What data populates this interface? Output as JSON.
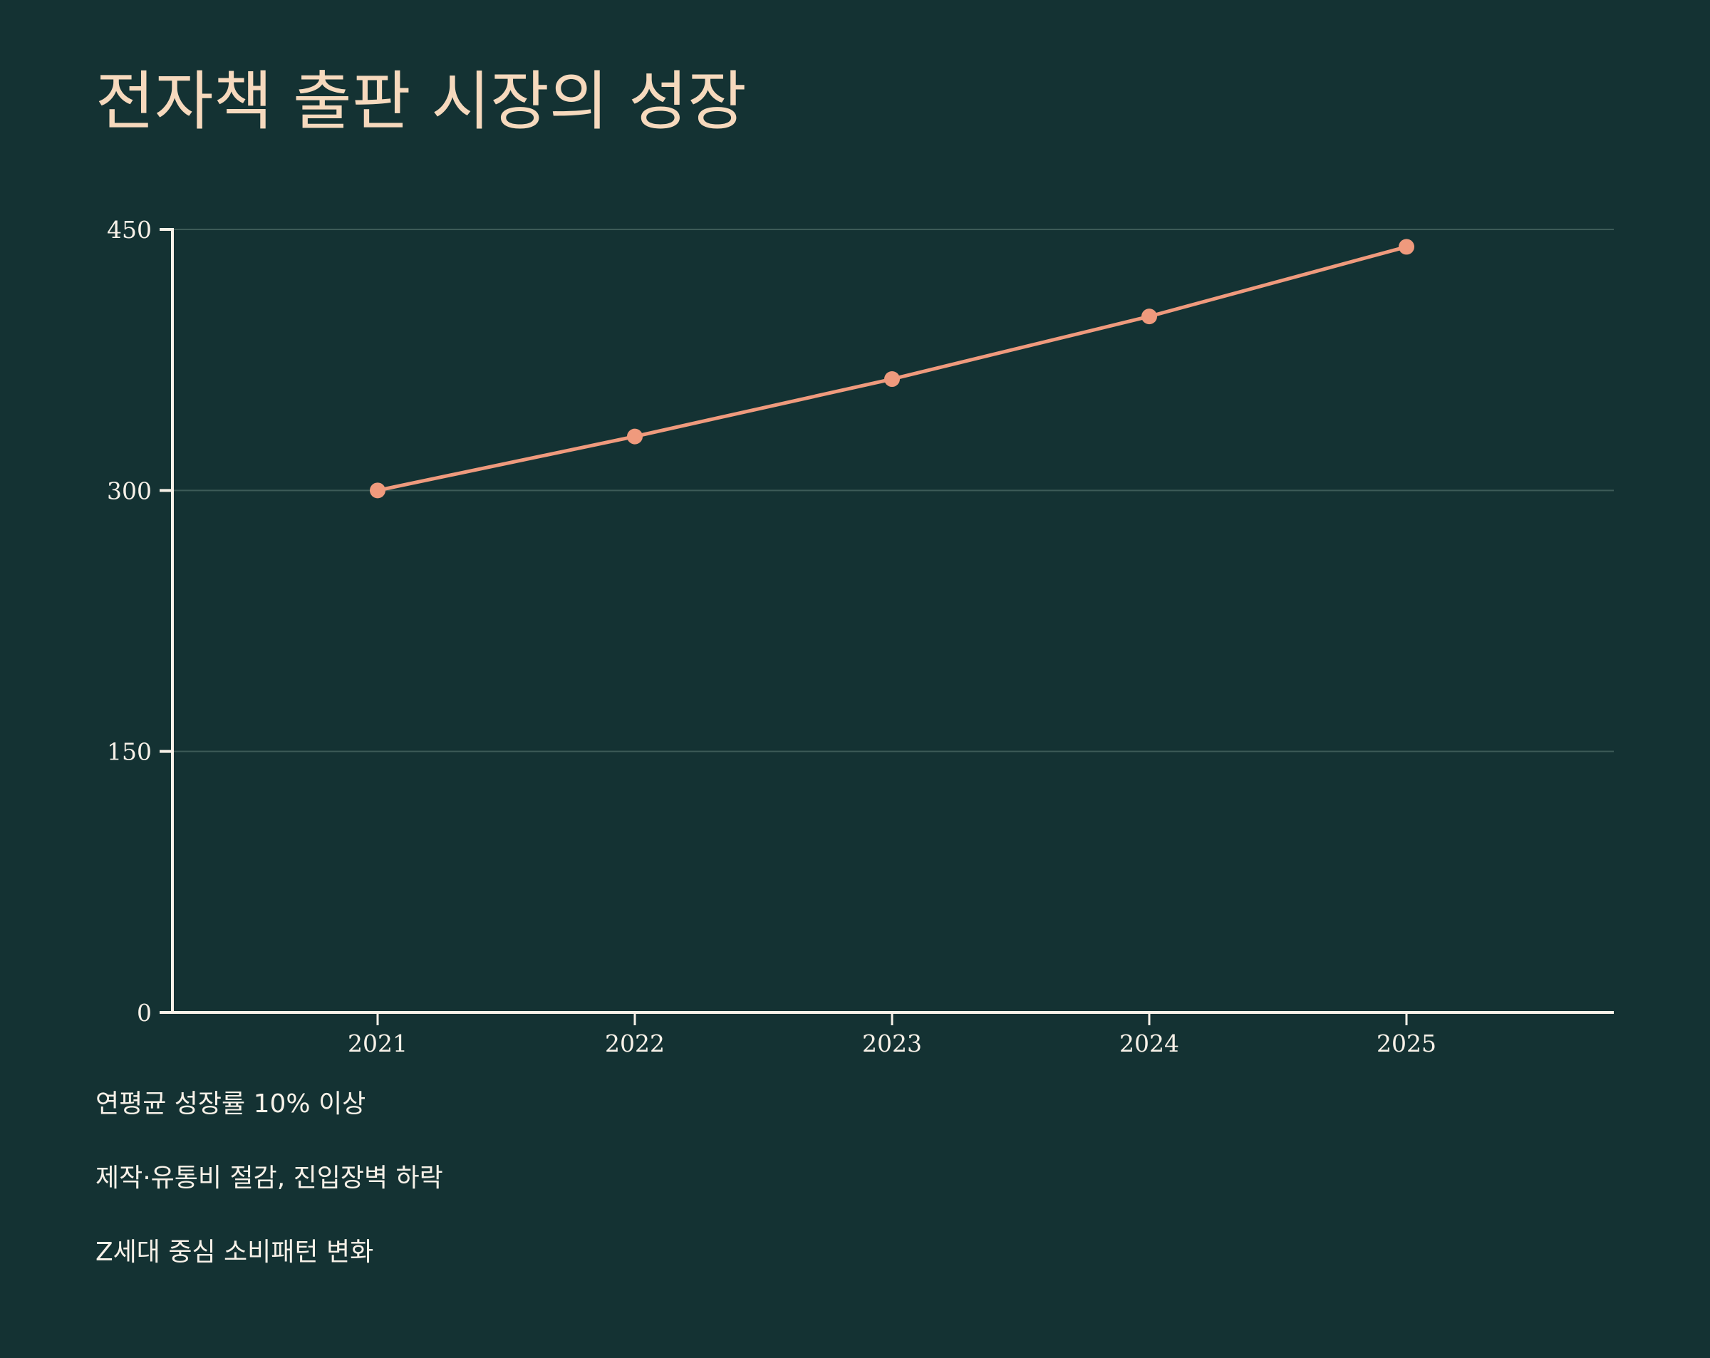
{
  "colors": {
    "background": "#143233",
    "title": "#f6d9bd",
    "text": "#f7f1e8",
    "axis": "#f7f1e8",
    "grid": "#3d5b58",
    "series": "#ef9a7d"
  },
  "chart_data": {
    "type": "line",
    "title": "전자책 출판 시장의 성장",
    "xlabel": "",
    "ylabel": "",
    "categories": [
      "2021",
      "2022",
      "2023",
      "2024",
      "2025"
    ],
    "series": [
      {
        "values": [
          300,
          331,
          364,
          400,
          440
        ]
      }
    ],
    "ylim": [
      0,
      450
    ],
    "yticks": [
      "0",
      "150",
      "300",
      "450"
    ],
    "grid": true,
    "legend": "none",
    "markers": true
  },
  "notes": [
    "연평균 성장률 10% 이상",
    "제작·유통비 절감, 진입장벽 하락",
    "Z세대 중심 소비패턴 변화"
  ]
}
